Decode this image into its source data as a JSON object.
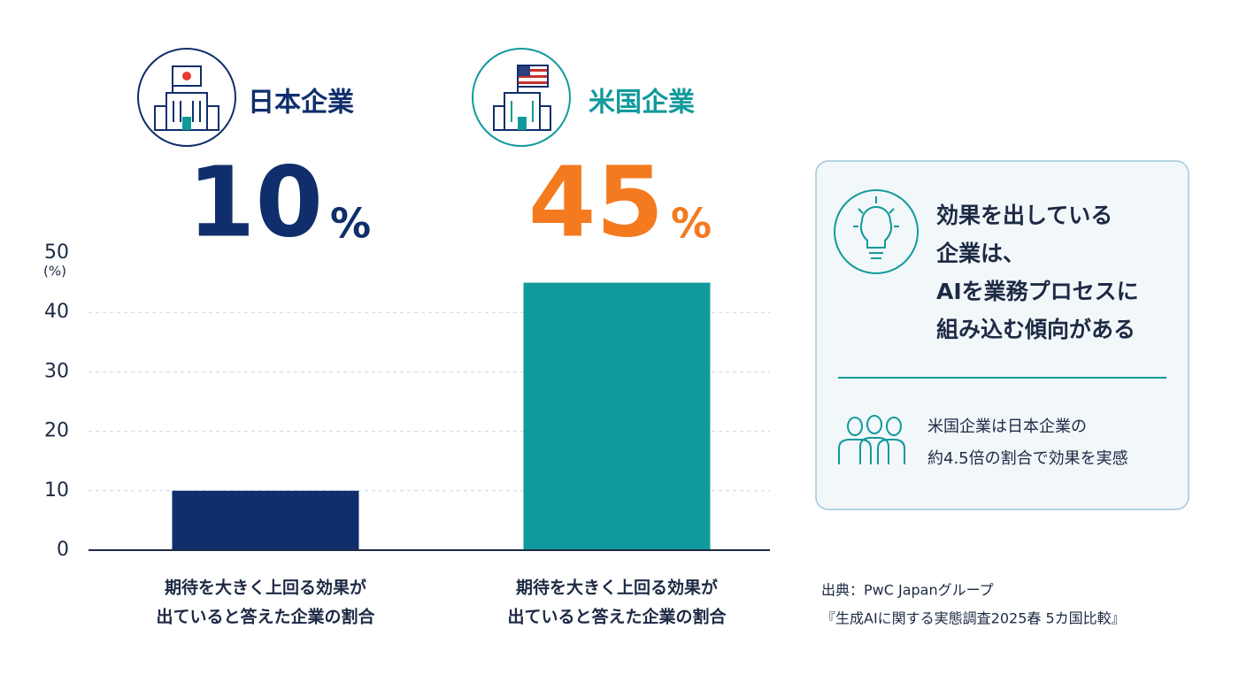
{
  "chart_data": {
    "type": "bar",
    "categories": [
      "日本企業",
      "米国企業"
    ],
    "category_colors": [
      "#0f2e6b",
      "#119a9c"
    ],
    "values": [
      10,
      45
    ],
    "value_unit": "%",
    "value_label_colors": [
      "#0f2e6b",
      "#f47a1f"
    ],
    "colors": [
      "#0f2e6b",
      "#119a9c"
    ],
    "bar_labels": [
      [
        "期待を大きく上回る効果が",
        "出ていると答えた企業の割合"
      ],
      [
        "期待を大きく上回る効果が",
        "出ていると答えた企業の割合"
      ]
    ],
    "ylim": [
      0,
      50
    ],
    "yticks": [
      0,
      10,
      20,
      30,
      40,
      50
    ],
    "y_unit": "(%)",
    "grid": true,
    "callout": {
      "headline": [
        "効果を出している",
        "企業は、",
        "AIを業務プロセスに",
        "組み込む傾向がある"
      ],
      "note": [
        "米国企業は日本企業の",
        "約4.5倍の割合で効果を実感"
      ]
    },
    "source": [
      "出典：PwC Japanグループ",
      "『生成AIに関する実態調査2025春 5カ国比較』"
    ]
  }
}
